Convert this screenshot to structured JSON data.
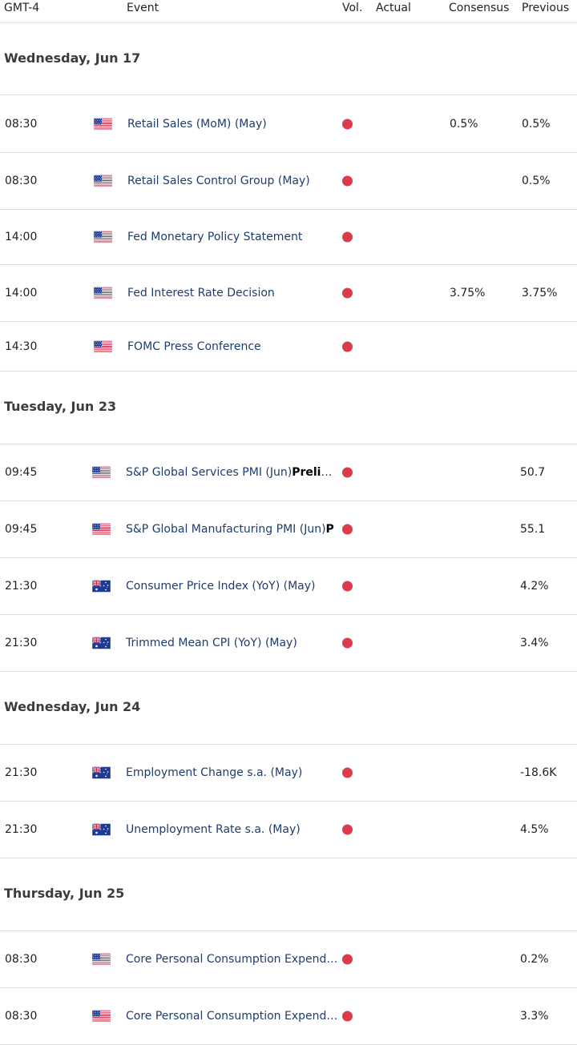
{
  "headers": {
    "tz": "GMT-4",
    "event": "Event",
    "vol": "Vol.",
    "actual": "Actual",
    "consensus": "Consensus",
    "previous": "Previous"
  },
  "colors": {
    "impact_dot": "#dc3b4b",
    "event_text": "#1f3c6e",
    "divider": "#dedede"
  },
  "days": [
    {
      "label": "Wednesday, Jun 17",
      "events": [
        {
          "time": "08:30",
          "country": "us-flag-icon",
          "name": "Retail Sales (MoM) (May)",
          "bold": "",
          "actual": "",
          "consensus": "0.5%",
          "previous": "0.5%"
        },
        {
          "time": "08:30",
          "country": "us-flag-icon",
          "name": "Retail Sales Control Group (May)",
          "bold": "",
          "actual": "",
          "consensus": "",
          "previous": "0.5%"
        },
        {
          "time": "14:00",
          "country": "us-flag-icon",
          "name": "Fed Monetary Policy Statement",
          "bold": "",
          "actual": "",
          "consensus": "",
          "previous": ""
        },
        {
          "time": "14:00",
          "country": "us-flag-icon",
          "name": "Fed Interest Rate Decision",
          "bold": "",
          "actual": "",
          "consensus": "3.75%",
          "previous": "3.75%"
        },
        {
          "time": "14:30",
          "country": "us-flag-icon",
          "name": "FOMC Press Conference",
          "bold": "",
          "actual": "",
          "consensus": "",
          "previous": ""
        }
      ]
    },
    {
      "label": "Tuesday, Jun 23",
      "events": [
        {
          "time": "09:45",
          "country": "us-flag-icon",
          "name": "S&P Global Services PMI (Jun)",
          "bold": "Prelimi…",
          "actual": "",
          "consensus": "",
          "previous": "50.7"
        },
        {
          "time": "09:45",
          "country": "us-flag-icon",
          "name": "S&P Global Manufacturing PMI (Jun)",
          "bold": "P",
          "actual": "",
          "consensus": "",
          "previous": "55.1"
        },
        {
          "time": "21:30",
          "country": "au-flag-icon",
          "name": "Consumer Price Index (YoY) (May)",
          "bold": "",
          "actual": "",
          "consensus": "",
          "previous": "4.2%"
        },
        {
          "time": "21:30",
          "country": "au-flag-icon",
          "name": "Trimmed Mean CPI (YoY) (May)",
          "bold": "",
          "actual": "",
          "consensus": "",
          "previous": "3.4%"
        }
      ]
    },
    {
      "label": "Wednesday, Jun 24",
      "events": [
        {
          "time": "21:30",
          "country": "au-flag-icon",
          "name": "Employment Change s.a. (May)",
          "bold": "",
          "actual": "",
          "consensus": "",
          "previous": "-18.6K"
        },
        {
          "time": "21:30",
          "country": "au-flag-icon",
          "name": "Unemployment Rate s.a. (May)",
          "bold": "",
          "actual": "",
          "consensus": "",
          "previous": "4.5%"
        }
      ]
    },
    {
      "label": "Thursday, Jun 25",
      "events": [
        {
          "time": "08:30",
          "country": "us-flag-icon",
          "name": "Core Personal Consumption Expendit…",
          "bold": "",
          "actual": "",
          "consensus": "",
          "previous": "0.2%"
        },
        {
          "time": "08:30",
          "country": "us-flag-icon",
          "name": "Core Personal Consumption Expendit…",
          "bold": "",
          "actual": "",
          "consensus": "",
          "previous": "3.3%"
        }
      ]
    }
  ]
}
